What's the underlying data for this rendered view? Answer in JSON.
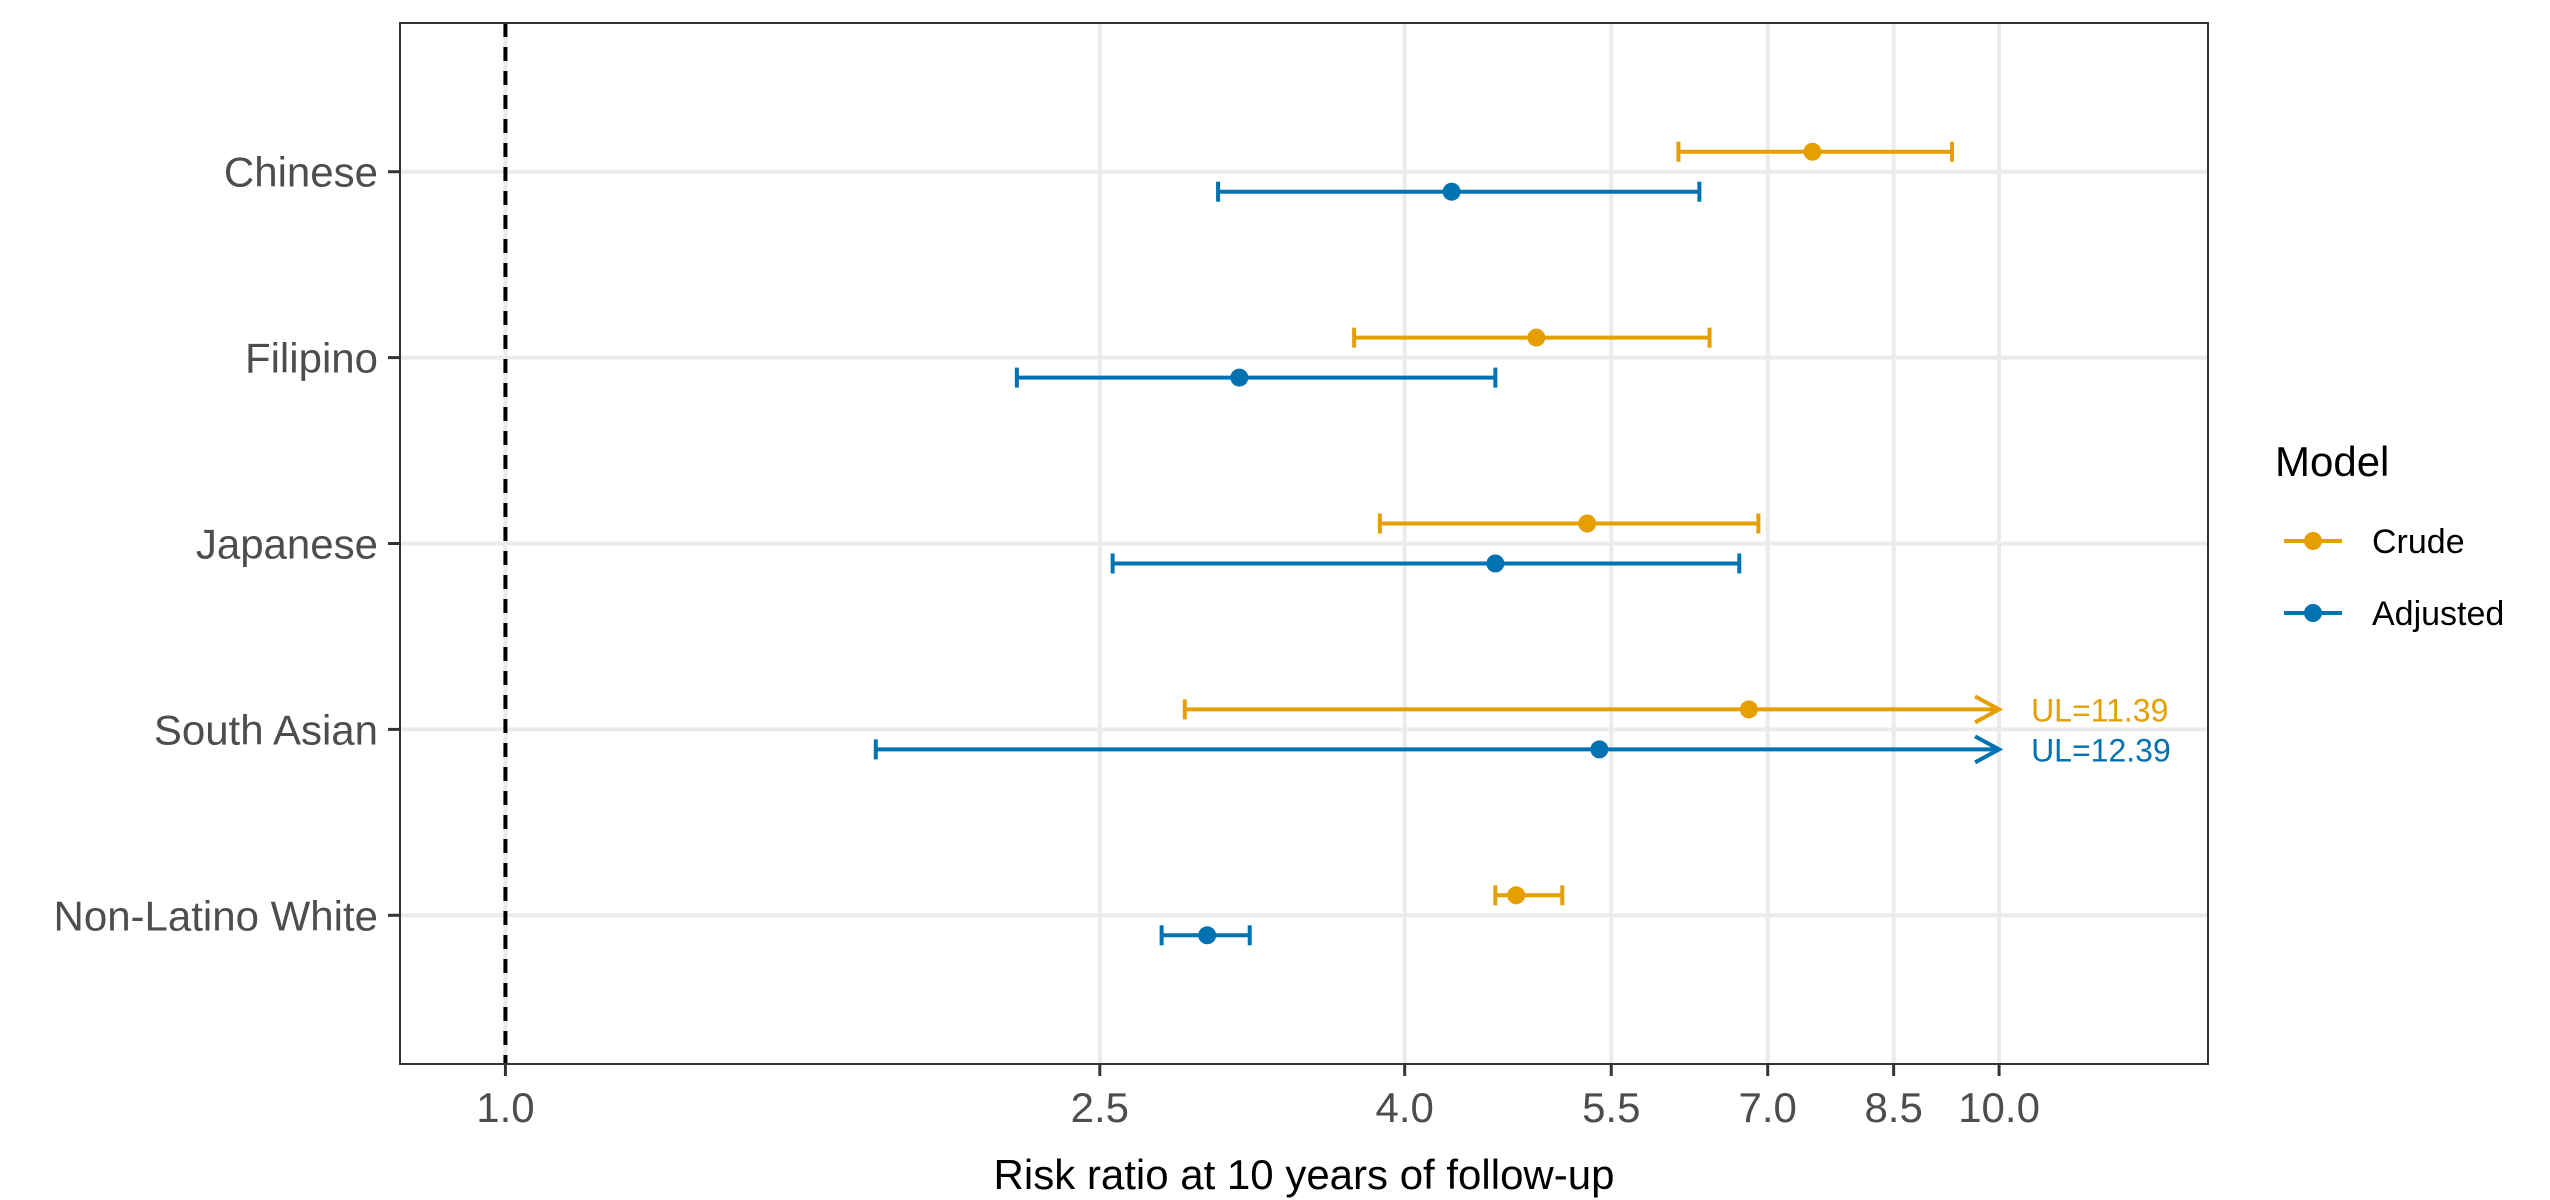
{
  "chart_data": {
    "type": "forest",
    "xlabel": "Risk ratio at 10 years of follow-up",
    "x_scale": "log",
    "xlim": [
      0.85,
      13.8
    ],
    "x_ticks": [
      1.0,
      2.5,
      4.0,
      5.5,
      7.0,
      8.5,
      10.0
    ],
    "x_tick_labels": [
      "1.0",
      "2.5",
      "4.0",
      "5.5",
      "7.0",
      "8.5",
      "10.0"
    ],
    "reference_line": 1.0,
    "grid": true,
    "legend": {
      "title": "Model",
      "placement": "right",
      "entries": [
        "Crude",
        "Adjusted"
      ]
    },
    "categories": [
      "Chinese",
      "Filipino",
      "Japanese",
      "South Asian",
      "Non-Latino White"
    ],
    "series": [
      {
        "name": "Crude",
        "color": "#E69F00",
        "estimates": [
          7.5,
          4.9,
          5.3,
          6.8,
          4.75
        ],
        "lower": [
          6.1,
          3.7,
          3.85,
          2.85,
          4.6
        ],
        "upper": [
          9.3,
          6.4,
          6.9,
          10.0,
          5.1
        ],
        "truncated_upper": [
          null,
          null,
          null,
          "UL=11.39",
          null
        ]
      },
      {
        "name": "Adjusted",
        "color": "#0072B2",
        "estimates": [
          4.3,
          3.1,
          4.6,
          5.4,
          2.95
        ],
        "lower": [
          3.0,
          2.2,
          2.55,
          1.77,
          2.75
        ],
        "upper": [
          6.3,
          4.6,
          6.7,
          10.0,
          3.15
        ],
        "truncated_upper": [
          null,
          null,
          null,
          "UL=12.39",
          null
        ]
      }
    ]
  }
}
